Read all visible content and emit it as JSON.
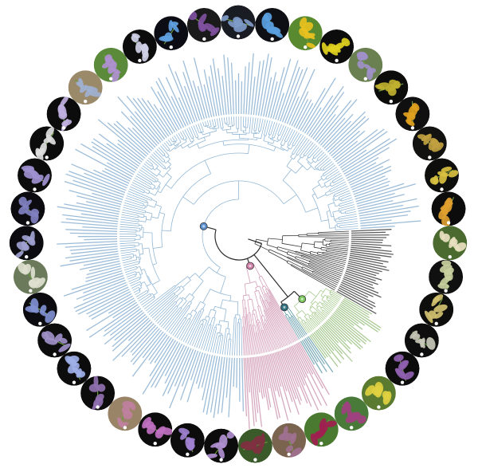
{
  "figure": {
    "type": "circular phylogenetic tree with specimen photographs",
    "clades": [
      {
        "id": "black",
        "color": "#3a3a3a",
        "label_color": "#444444",
        "from_deg": -3,
        "to_deg": 30,
        "tips": 32
      },
      {
        "id": "green",
        "color": "#a8cc90",
        "label_color": "#9cc284",
        "from_deg": 30,
        "to_deg": 55,
        "tips": 30
      },
      {
        "id": "teal",
        "color": "#5f9aa8",
        "label_color": "#6aa0ae",
        "from_deg": 55,
        "to_deg": 60,
        "tips": 6
      },
      {
        "id": "pink",
        "color": "#d4a0b8",
        "label_color": "#d09ab4",
        "from_deg": 60,
        "to_deg": 88,
        "tips": 38
      },
      {
        "id": "blue",
        "color": "#93b8d6",
        "label_color": "#8db2d2",
        "from_deg": 88,
        "to_deg": 357,
        "tips": 230
      }
    ],
    "clade_nodes": [
      {
        "clade": "blue",
        "color": "#5b8fd0"
      },
      {
        "clade": "pink",
        "color": "#d080a8"
      },
      {
        "clade": "teal",
        "color": "#2f6f80"
      },
      {
        "clade": "green",
        "color": "#7cc860"
      }
    ],
    "photos": [
      {
        "bg": "#1a1c24",
        "flower": "#7f9bc8"
      },
      {
        "bg": "#0e0f14",
        "flower": "#5aa0e0"
      },
      {
        "bg": "#5a8a30",
        "flower": "#e8c020"
      },
      {
        "bg": "#0c0c0c",
        "flower": "#e0d020"
      },
      {
        "bg": "#6a8050",
        "flower": "#a090c8"
      },
      {
        "bg": "#0c0c0a",
        "flower": "#c0b030"
      },
      {
        "bg": "#101010",
        "flower": "#e0a020"
      },
      {
        "bg": "#121210",
        "flower": "#c0a040"
      },
      {
        "bg": "#0e0e0c",
        "flower": "#d8c040"
      },
      {
        "bg": "#0c0c0c",
        "flower": "#e0a030"
      },
      {
        "bg": "#4a6a30",
        "flower": "#e8e0c0"
      },
      {
        "bg": "#101010",
        "flower": "#c8d0a0"
      },
      {
        "bg": "#0e0e0c",
        "flower": "#d0c070"
      },
      {
        "bg": "#0e0e0e",
        "flower": "#c8c8b8"
      },
      {
        "bg": "#0c0c0c",
        "flower": "#9060b0"
      },
      {
        "bg": "#5a7a30",
        "flower": "#e0d040"
      },
      {
        "bg": "#4a7a3a",
        "flower": "#a04080"
      },
      {
        "bg": "#4a7a30",
        "flower": "#a02050"
      },
      {
        "bg": "#7a6450",
        "flower": "#a07090"
      },
      {
        "bg": "#3a5a2a",
        "flower": "#803040"
      },
      {
        "bg": "#0c0c0c",
        "flower": "#b090d0"
      },
      {
        "bg": "#0c0c0c",
        "flower": "#a080d0"
      },
      {
        "bg": "#0c0c0c",
        "flower": "#c070c0"
      },
      {
        "bg": "#9a8468",
        "flower": "#c080a0"
      },
      {
        "bg": "#0c0c0c",
        "flower": "#9070b0"
      },
      {
        "bg": "#0c0c0c",
        "flower": "#a0b0e8"
      },
      {
        "bg": "#0c0c0c",
        "flower": "#a090c8"
      },
      {
        "bg": "#0c0c10",
        "flower": "#8090d0"
      },
      {
        "bg": "#6a7a5a",
        "flower": "#e0e0d0"
      },
      {
        "bg": "#0c0c10",
        "flower": "#a0a0d0"
      },
      {
        "bg": "#0c0c10",
        "flower": "#8080c0"
      },
      {
        "bg": "#0c0c0c",
        "flower": "#a090d0"
      },
      {
        "bg": "#0c0c0c",
        "flower": "#e0e0e0"
      },
      {
        "bg": "#0c0c0c",
        "flower": "#c0b0e0"
      },
      {
        "bg": "#9a8a6a",
        "flower": "#a0b0d0"
      },
      {
        "bg": "#5a8a3a",
        "flower": "#b090d0"
      },
      {
        "bg": "#0c0c0c",
        "flower": "#d0d0e8"
      },
      {
        "bg": "#0c0c14",
        "flower": "#60a0e0"
      },
      {
        "bg": "#1a1a1a",
        "flower": "#8050a0"
      }
    ]
  }
}
